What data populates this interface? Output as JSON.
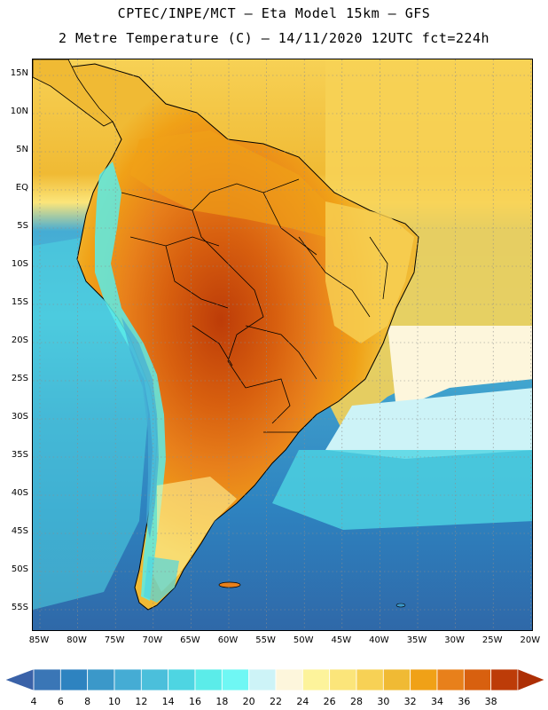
{
  "title_line1": "CPTEC/INPE/MCT –  Eta Model 15km – GFS",
  "title_line2": "2 Metre Temperature (C) – 14/11/2020 12UTC fct=224h",
  "lat_labels": [
    "15N",
    "10N",
    "5N",
    "EQ",
    "5S",
    "10S",
    "15S",
    "20S",
    "25S",
    "30S",
    "35S",
    "40S",
    "45S",
    "50S",
    "55S"
  ],
  "lon_labels": [
    "85W",
    "80W",
    "75W",
    "70W",
    "65W",
    "60W",
    "55W",
    "50W",
    "45W",
    "40W",
    "35W",
    "30W",
    "25W",
    "20W"
  ],
  "colorbar": {
    "labels": [
      "4",
      "6",
      "8",
      "10",
      "12",
      "14",
      "16",
      "18",
      "20",
      "22",
      "24",
      "26",
      "28",
      "30",
      "32",
      "34",
      "36",
      "38"
    ],
    "colors": [
      "#3a76b6",
      "#2e83c0",
      "#3b98c9",
      "#45acd4",
      "#4bbfdb",
      "#4ed5e2",
      "#5bece9",
      "#6ff7f4",
      "#cdf3f7",
      "#fdf6dc",
      "#fdf39b",
      "#fbe57a",
      "#f7d155",
      "#f0ba34",
      "#f0a117",
      "#e8801b",
      "#d8600f",
      "#bd3c08"
    ],
    "low_color": "#3a62a8",
    "high_color": "#ad2f05"
  }
}
